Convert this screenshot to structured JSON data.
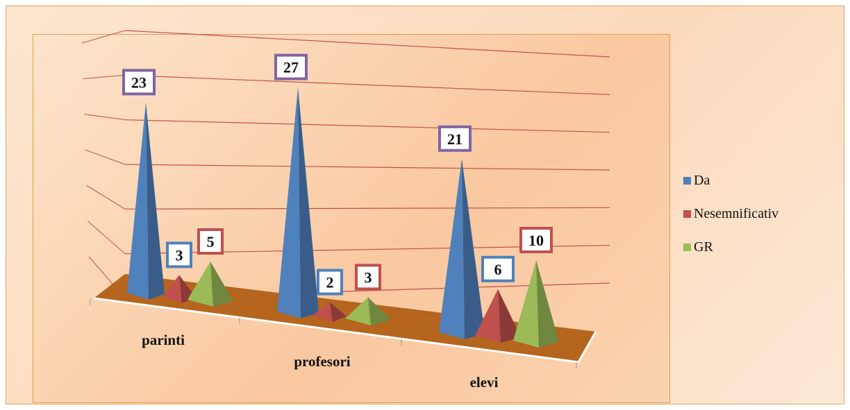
{
  "chart_data": {
    "type": "bar",
    "subtype": "3d-pyramid",
    "title": "",
    "xlabel": "",
    "ylabel": "",
    "categories": [
      "parinti",
      "profesori",
      "elevi"
    ],
    "series": [
      {
        "name": "Da",
        "values": [
          23,
          27,
          21
        ],
        "color": "#4f81bd",
        "label_border": "#8064a2"
      },
      {
        "name": "Nesemnificativ",
        "values": [
          3,
          2,
          6
        ],
        "color": "#c0504d",
        "label_border": "#4f81bd"
      },
      {
        "name": "GR",
        "values": [
          5,
          3,
          10
        ],
        "color": "#9bbb59",
        "label_border": "#c0504d"
      }
    ],
    "ylim": [
      0,
      30
    ],
    "grid": true,
    "legend": "right",
    "floor_color": "#b5651d"
  }
}
